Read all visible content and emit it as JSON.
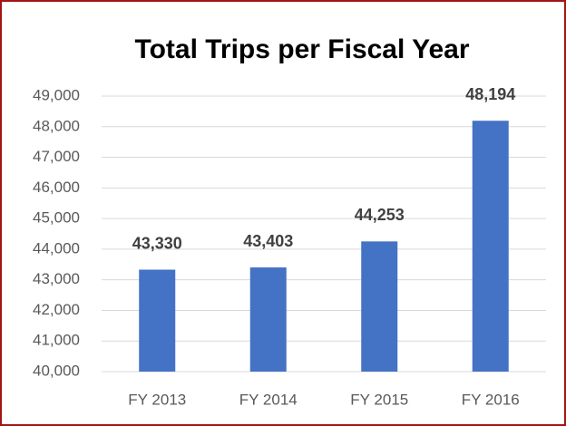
{
  "chart_data": {
    "type": "bar",
    "title": "Total Trips per Fiscal Year",
    "categories": [
      "FY 2013",
      "FY 2014",
      "FY 2015",
      "FY 2016"
    ],
    "values": [
      43330,
      43403,
      44253,
      48194
    ],
    "value_labels": [
      "43,330",
      "43,403",
      "44,253",
      "48,194"
    ],
    "color": "#4472c4",
    "ylim": [
      40000,
      49000
    ],
    "yticks": [
      {
        "value": 40000,
        "label": "40,000"
      },
      {
        "value": 41000,
        "label": "41,000"
      },
      {
        "value": 42000,
        "label": "42,000"
      },
      {
        "value": 43000,
        "label": "43,000"
      },
      {
        "value": 44000,
        "label": "44,000"
      },
      {
        "value": 45000,
        "label": "45,000"
      },
      {
        "value": 46000,
        "label": "46,000"
      },
      {
        "value": 47000,
        "label": "47,000"
      },
      {
        "value": 48000,
        "label": "48,000"
      },
      {
        "value": 49000,
        "label": "49,000"
      }
    ],
    "grid": true
  }
}
